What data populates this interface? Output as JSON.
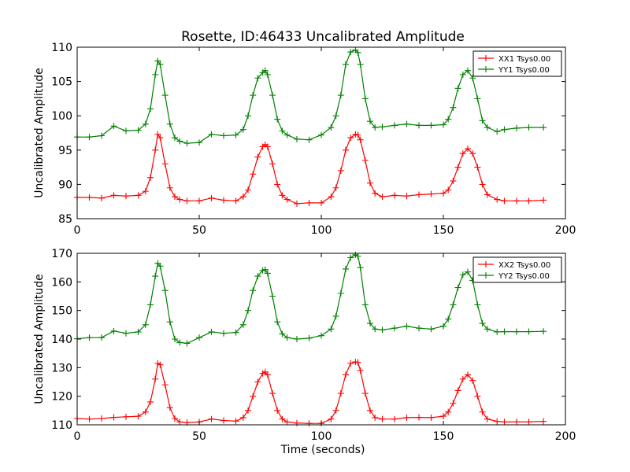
{
  "figure": {
    "title": "Rosette, ID:46433 Uncalibrated Amplitude",
    "xlabel": "Time (seconds)"
  },
  "chart_data": [
    {
      "type": "line",
      "panel": "top",
      "title": "Rosette, ID:46433 Uncalibrated Amplitude",
      "xlabel": "",
      "ylabel": "Uncalibrated Amplitude",
      "xlim": [
        0,
        200
      ],
      "ylim": [
        85,
        110
      ],
      "xticks": [
        0,
        50,
        100,
        150,
        200
      ],
      "yticks": [
        85,
        90,
        95,
        100,
        105,
        110
      ],
      "grid": false,
      "legend": "top-right",
      "x": [
        0,
        5,
        10,
        15,
        20,
        25,
        28,
        30,
        32,
        33,
        34,
        36,
        38,
        40,
        42,
        45,
        50,
        55,
        60,
        65,
        68,
        70,
        72,
        74,
        76,
        77,
        78,
        80,
        82,
        84,
        86,
        90,
        95,
        100,
        104,
        106,
        108,
        110,
        112,
        114,
        115,
        116,
        118,
        120,
        122,
        125,
        130,
        135,
        140,
        145,
        150,
        152,
        154,
        156,
        158,
        160,
        162,
        164,
        166,
        168,
        172,
        175,
        180,
        185,
        191
      ],
      "series": [
        {
          "name": "XX1 Tsys0.00",
          "color": "#ff0000",
          "values": [
            88.1,
            88.1,
            88.0,
            88.4,
            88.3,
            88.4,
            89.0,
            91.0,
            95.0,
            97.3,
            96.8,
            93.0,
            89.5,
            88.2,
            87.8,
            87.6,
            87.6,
            88.0,
            87.7,
            87.6,
            88.2,
            89.2,
            91.5,
            94.0,
            95.5,
            95.8,
            95.5,
            93.0,
            90.0,
            88.4,
            87.8,
            87.2,
            87.3,
            87.3,
            88.2,
            89.5,
            92.0,
            95.0,
            96.8,
            97.3,
            97.2,
            96.5,
            93.5,
            90.2,
            88.7,
            88.2,
            88.4,
            88.3,
            88.5,
            88.6,
            88.7,
            89.2,
            90.5,
            92.5,
            94.5,
            95.2,
            94.5,
            92.5,
            90.0,
            88.5,
            87.8,
            87.6,
            87.6,
            87.6,
            87.7
          ]
        },
        {
          "name": "YY1 Tsys0.00",
          "color": "#008000",
          "values": [
            96.9,
            96.9,
            97.1,
            98.5,
            97.8,
            97.9,
            98.8,
            101.0,
            106.0,
            108.0,
            107.5,
            103.0,
            98.8,
            96.8,
            96.3,
            96.0,
            96.1,
            97.3,
            97.1,
            97.2,
            98.0,
            100.0,
            103.0,
            105.5,
            106.3,
            106.6,
            106.0,
            103.0,
            99.5,
            97.8,
            97.2,
            96.6,
            96.5,
            97.2,
            98.3,
            100.0,
            103.0,
            107.5,
            109.3,
            109.6,
            109.2,
            107.5,
            102.5,
            99.2,
            98.3,
            98.4,
            98.6,
            98.8,
            98.6,
            98.6,
            98.7,
            99.5,
            101.2,
            104.0,
            106.0,
            106.6,
            105.5,
            102.5,
            99.3,
            98.3,
            97.7,
            98.0,
            98.2,
            98.3,
            98.3
          ]
        }
      ]
    },
    {
      "type": "line",
      "panel": "bottom",
      "title": "",
      "xlabel": "Time (seconds)",
      "ylabel": "Uncalibrated Amplitude",
      "xlim": [
        0,
        200
      ],
      "ylim": [
        110,
        170
      ],
      "xticks": [
        0,
        50,
        100,
        150,
        200
      ],
      "yticks": [
        110,
        120,
        130,
        140,
        150,
        160,
        170
      ],
      "grid": false,
      "legend": "top-right",
      "x": [
        0,
        5,
        10,
        15,
        20,
        25,
        28,
        30,
        32,
        33,
        34,
        36,
        38,
        40,
        42,
        45,
        50,
        55,
        60,
        65,
        68,
        70,
        72,
        74,
        76,
        77,
        78,
        80,
        82,
        84,
        86,
        90,
        95,
        100,
        104,
        106,
        108,
        110,
        112,
        114,
        115,
        116,
        118,
        120,
        122,
        125,
        130,
        135,
        140,
        145,
        150,
        152,
        154,
        156,
        158,
        160,
        162,
        164,
        166,
        168,
        172,
        175,
        180,
        185,
        191
      ],
      "series": [
        {
          "name": "XX2 Tsys0.00",
          "color": "#ff0000",
          "values": [
            112.2,
            112.0,
            112.2,
            112.6,
            112.8,
            113.0,
            114.5,
            118.0,
            126.0,
            131.5,
            131.0,
            124.0,
            116.0,
            112.2,
            111.0,
            110.8,
            111.0,
            112.0,
            111.5,
            111.3,
            112.5,
            115.0,
            120.0,
            125.0,
            128.0,
            128.5,
            127.5,
            121.0,
            115.0,
            112.0,
            111.0,
            110.6,
            110.5,
            110.5,
            112.0,
            115.0,
            121.0,
            127.5,
            131.5,
            132.0,
            131.8,
            129.0,
            121.0,
            115.0,
            112.5,
            112.0,
            112.0,
            112.5,
            112.6,
            112.5,
            113.0,
            114.5,
            117.5,
            122.0,
            126.0,
            127.5,
            125.5,
            120.0,
            114.5,
            112.0,
            111.2,
            111.0,
            111.0,
            111.0,
            111.2
          ]
        },
        {
          "name": "YY2 Tsys0.00",
          "color": "#008000",
          "values": [
            140.1,
            140.5,
            140.5,
            142.8,
            142.0,
            142.5,
            145.0,
            152.0,
            162.0,
            166.5,
            165.5,
            157.0,
            146.0,
            140.0,
            138.8,
            138.5,
            140.5,
            142.5,
            142.0,
            142.3,
            145.0,
            150.0,
            157.0,
            162.0,
            164.0,
            164.3,
            163.0,
            155.0,
            146.0,
            141.8,
            140.5,
            140.0,
            140.3,
            141.2,
            143.5,
            148.0,
            156.0,
            164.5,
            168.5,
            169.5,
            169.0,
            165.0,
            152.0,
            145.5,
            143.5,
            143.2,
            143.8,
            144.5,
            143.8,
            143.5,
            144.5,
            147.0,
            152.0,
            158.0,
            162.5,
            163.5,
            160.5,
            152.0,
            145.5,
            143.5,
            142.5,
            142.6,
            142.6,
            142.6,
            142.7
          ]
        }
      ]
    }
  ]
}
